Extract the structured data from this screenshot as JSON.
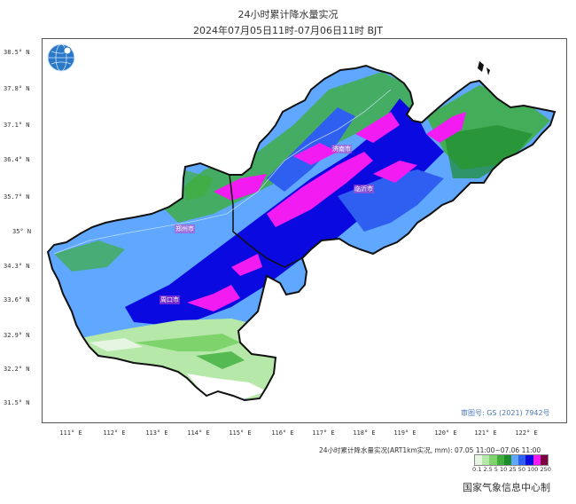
{
  "title": {
    "line1": "24小时累计降水量实况",
    "line2": "2024年07月05日11时-07月06日11时 BJT"
  },
  "y_axis_ticks": [
    "38.5° N",
    "37.8° N",
    "37.1° N",
    "36.4° N",
    "35.7° N",
    "35° N",
    "34.3° N",
    "33.6° N",
    "32.9° N",
    "32.2° N",
    "31.5° N"
  ],
  "x_axis_ticks": [
    "111° E",
    "112° E",
    "113° E",
    "114° E",
    "115° E",
    "116° E",
    "117° E",
    "118° E",
    "119° E",
    "120° E",
    "121° E",
    "122° E"
  ],
  "cities": [
    "济南市",
    "郑州市",
    "周口市",
    "临沂市"
  ],
  "approval_number": "审图号: GS (2021) 7942号",
  "legend": {
    "title": "24小时累计降水量实况(ART1km实况, mm): 07.05 11:00~07.06 11:00",
    "labels": "0.1 2.5 5  10  25  50 100 250",
    "colors": [
      "#e6f5e1",
      "#b6e9a9",
      "#7ed36d",
      "#3fae3c",
      "#1d8b2c",
      "#5fa7ff",
      "#2f5ff0",
      "#0a0ae0",
      "#f21cf2",
      "#7a0040"
    ]
  },
  "credit": "国家气象信息中心制",
  "logo_icon": "globe-icon"
}
